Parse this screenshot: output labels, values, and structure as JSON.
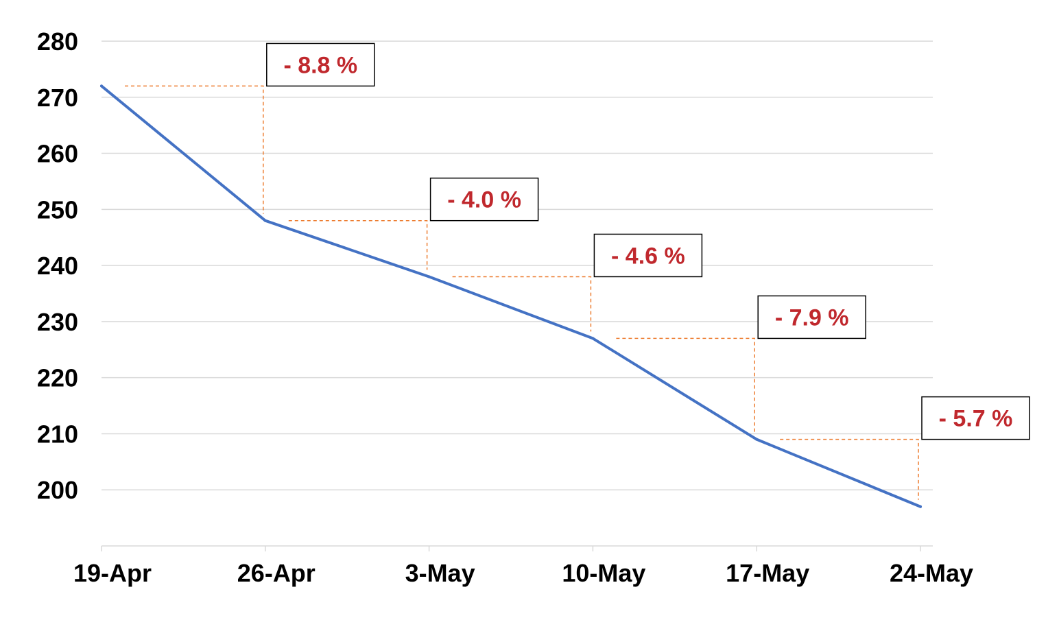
{
  "chart_data": {
    "type": "line",
    "categories": [
      "19-Apr",
      "26-Apr",
      "3-May",
      "10-May",
      "17-May",
      "24-May"
    ],
    "series": [
      {
        "values": [
          272,
          248,
          238,
          227,
          209,
          197
        ]
      }
    ],
    "ylim": [
      190,
      280
    ],
    "yticks": [
      200,
      210,
      220,
      230,
      240,
      250,
      260,
      270,
      280
    ],
    "grid": true,
    "legend": "none",
    "annotations": [
      {
        "label": "- 8.8 %",
        "from_index": 0,
        "to_index": 1
      },
      {
        "label": "- 4.0 %",
        "from_index": 1,
        "to_index": 2
      },
      {
        "label": "- 4.6 %",
        "from_index": 2,
        "to_index": 3
      },
      {
        "label": "- 7.9 %",
        "from_index": 3,
        "to_index": 4
      },
      {
        "label": "- 5.7 %",
        "from_index": 4,
        "to_index": 5
      }
    ],
    "colors": {
      "line": "#4472c4",
      "guide": "#ed7d31",
      "annotation_text": "#c0282d",
      "grid": "#d9d9d9",
      "text": "#000000"
    }
  }
}
